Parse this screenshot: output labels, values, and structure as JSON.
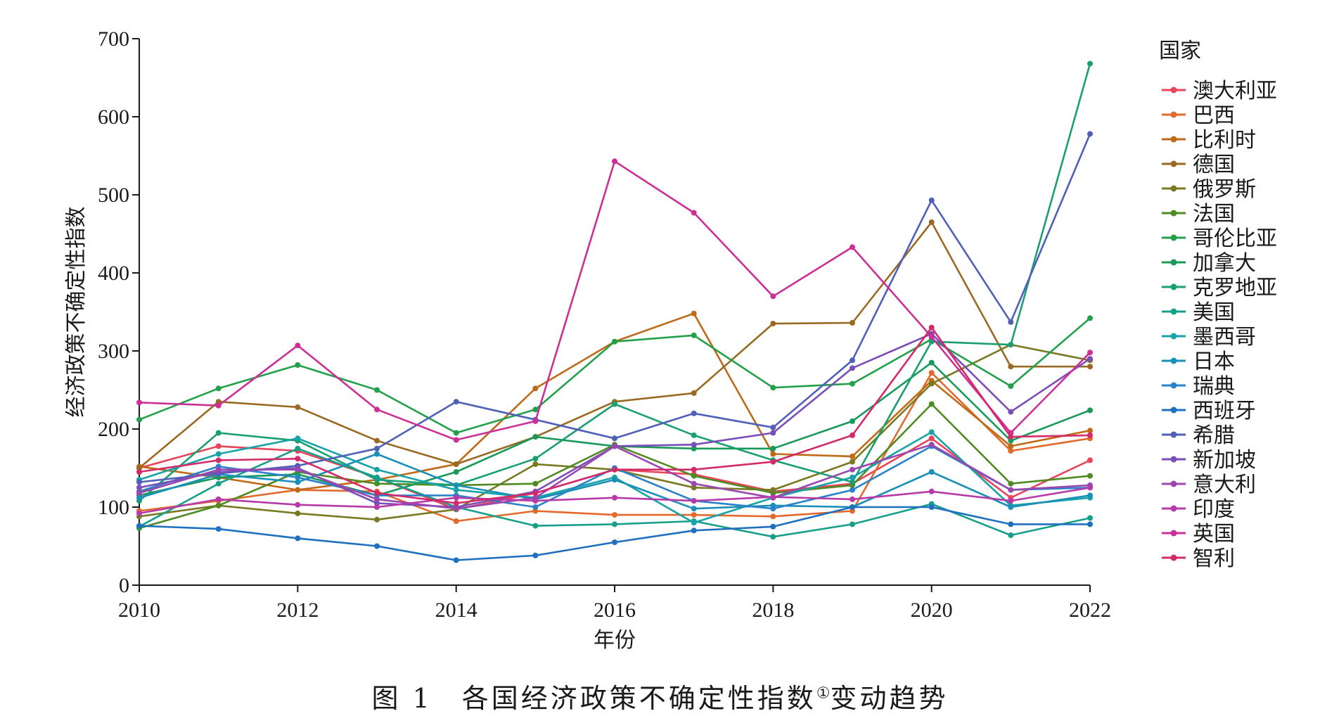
{
  "chart_data": {
    "type": "line",
    "xlabel": "年份",
    "ylabel": "经济政策不确定性指数",
    "legend_title": "国家",
    "legend_position": "right",
    "grid": false,
    "xlim": [
      2010,
      2022
    ],
    "ylim": [
      0,
      700
    ],
    "x_ticks": [
      2010,
      2012,
      2014,
      2016,
      2018,
      2020,
      2022
    ],
    "y_ticks": [
      0,
      100,
      200,
      300,
      400,
      500,
      600,
      700
    ],
    "x": [
      2010,
      2011,
      2012,
      2013,
      2014,
      2015,
      2016,
      2017,
      2018,
      2019,
      2020,
      2021,
      2022
    ],
    "series": [
      {
        "name": "澳大利亚",
        "color": "#e8455a",
        "values": [
          150,
          178,
          172,
          138,
          97,
          118,
          148,
          142,
          120,
          130,
          188,
          112,
          160
        ]
      },
      {
        "name": "巴西",
        "color": "#e36a2c",
        "values": [
          95,
          108,
          122,
          120,
          82,
          95,
          90,
          90,
          88,
          95,
          272,
          172,
          188
        ]
      },
      {
        "name": "比利时",
        "color": "#c06a18",
        "values": [
          152,
          138,
          122,
          135,
          155,
          252,
          312,
          348,
          168,
          165,
          262,
          178,
          198
        ]
      },
      {
        "name": "德国",
        "color": "#9a6a22",
        "values": [
          150,
          235,
          228,
          185,
          155,
          190,
          235,
          246,
          335,
          336,
          465,
          280,
          280
        ]
      },
      {
        "name": "俄罗斯",
        "color": "#7a7a22",
        "values": [
          88,
          102,
          92,
          84,
          97,
          155,
          148,
          125,
          122,
          158,
          258,
          308,
          288
        ]
      },
      {
        "name": "法国",
        "color": "#4f8a22",
        "values": [
          73,
          102,
          145,
          130,
          128,
          130,
          180,
          140,
          118,
          128,
          232,
          130,
          140
        ]
      },
      {
        "name": "哥伦比亚",
        "color": "#22a04a",
        "values": [
          212,
          252,
          282,
          250,
          195,
          225,
          312,
          320,
          253,
          258,
          315,
          255,
          342
        ]
      },
      {
        "name": "加拿大",
        "color": "#1a9a5a",
        "values": [
          115,
          138,
          142,
          115,
          145,
          190,
          178,
          175,
          175,
          210,
          285,
          185,
          224
        ]
      },
      {
        "name": "克罗地亚",
        "color": "#1aa070",
        "values": [
          108,
          195,
          185,
          135,
          128,
          162,
          232,
          192,
          160,
          132,
          312,
          308,
          668
        ]
      },
      {
        "name": "美国",
        "color": "#16a08a",
        "values": [
          75,
          130,
          175,
          138,
          100,
          76,
          78,
          82,
          62,
          78,
          104,
          64,
          86
        ]
      },
      {
        "name": "墨西哥",
        "color": "#18a3a8",
        "values": [
          135,
          168,
          188,
          148,
          122,
          112,
          138,
          80,
          112,
          138,
          196,
          102,
          112
        ]
      },
      {
        "name": "日本",
        "color": "#1a90b8",
        "values": [
          112,
          142,
          132,
          168,
          128,
          110,
          135,
          98,
          102,
          100,
          145,
          100,
          115
        ]
      },
      {
        "name": "瑞典",
        "color": "#2a82c8",
        "values": [
          120,
          152,
          138,
          115,
          115,
          100,
          150,
          108,
          98,
          122,
          178,
          122,
          125
        ]
      },
      {
        "name": "西班牙",
        "color": "#2070c0",
        "values": [
          76,
          72,
          60,
          50,
          32,
          38,
          55,
          70,
          75,
          100,
          100,
          78,
          78
        ]
      },
      {
        "name": "希腊",
        "color": "#5060b8",
        "values": [
          132,
          143,
          153,
          175,
          235,
          212,
          188,
          220,
          202,
          288,
          493,
          337,
          578
        ]
      },
      {
        "name": "新加坡",
        "color": "#7a4eb8",
        "values": [
          125,
          145,
          150,
          105,
          100,
          120,
          178,
          180,
          195,
          278,
          322,
          222,
          290
        ]
      },
      {
        "name": "意大利",
        "color": "#9a48b0",
        "values": [
          118,
          148,
          148,
          110,
          98,
          112,
          178,
          130,
          112,
          148,
          180,
          122,
          128
        ]
      },
      {
        "name": "印度",
        "color": "#b63aa8",
        "values": [
          92,
          110,
          103,
          100,
          112,
          108,
          112,
          108,
          113,
          110,
          120,
          108,
          125
        ]
      },
      {
        "name": "英国",
        "color": "#cc2f96",
        "values": [
          234,
          230,
          307,
          225,
          186,
          210,
          543,
          477,
          370,
          433,
          318,
          195,
          298
        ]
      },
      {
        "name": "智利",
        "color": "#d42a6a",
        "values": [
          145,
          160,
          162,
          118,
          105,
          118,
          148,
          148,
          158,
          192,
          330,
          190,
          192
        ]
      }
    ]
  },
  "caption": {
    "text": "图 1　各国经济政策不确定性指数",
    "note_mark": "①",
    "suffix": "变动趋势"
  }
}
